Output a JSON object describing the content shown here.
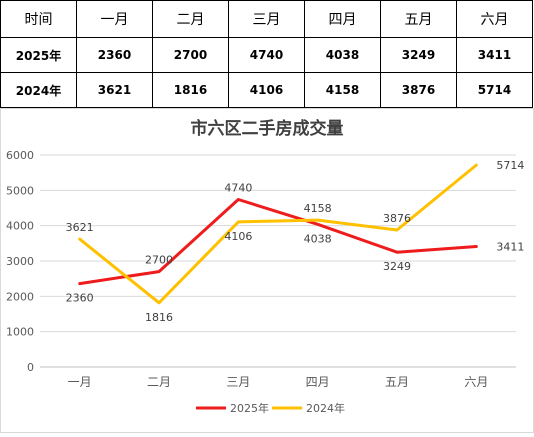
{
  "table": {
    "header": [
      "时间",
      "一月",
      "二月",
      "三月",
      "四月",
      "五月",
      "六月"
    ],
    "rows": [
      {
        "label": "2025年",
        "values": [
          "2360",
          "2700",
          "4740",
          "4038",
          "3249",
          "3411"
        ]
      },
      {
        "label": "2024年",
        "values": [
          "3621",
          "1816",
          "4106",
          "4158",
          "3876",
          "5714"
        ]
      }
    ]
  },
  "chart_data": {
    "type": "line",
    "title": "市六区二手房成交量",
    "categories": [
      "一月",
      "二月",
      "三月",
      "四月",
      "五月",
      "六月"
    ],
    "ylim": [
      0,
      6000
    ],
    "yticks": [
      0,
      1000,
      2000,
      3000,
      4000,
      5000,
      6000
    ],
    "grid": true,
    "legend_position": "bottom",
    "series": [
      {
        "name": "2025年",
        "color": "#ee1c1c",
        "values": [
          2360,
          2700,
          4740,
          4038,
          3249,
          3411
        ]
      },
      {
        "name": "2024年",
        "color": "#ffc000",
        "values": [
          3621,
          1816,
          4106,
          4158,
          3876,
          5714
        ]
      }
    ]
  }
}
